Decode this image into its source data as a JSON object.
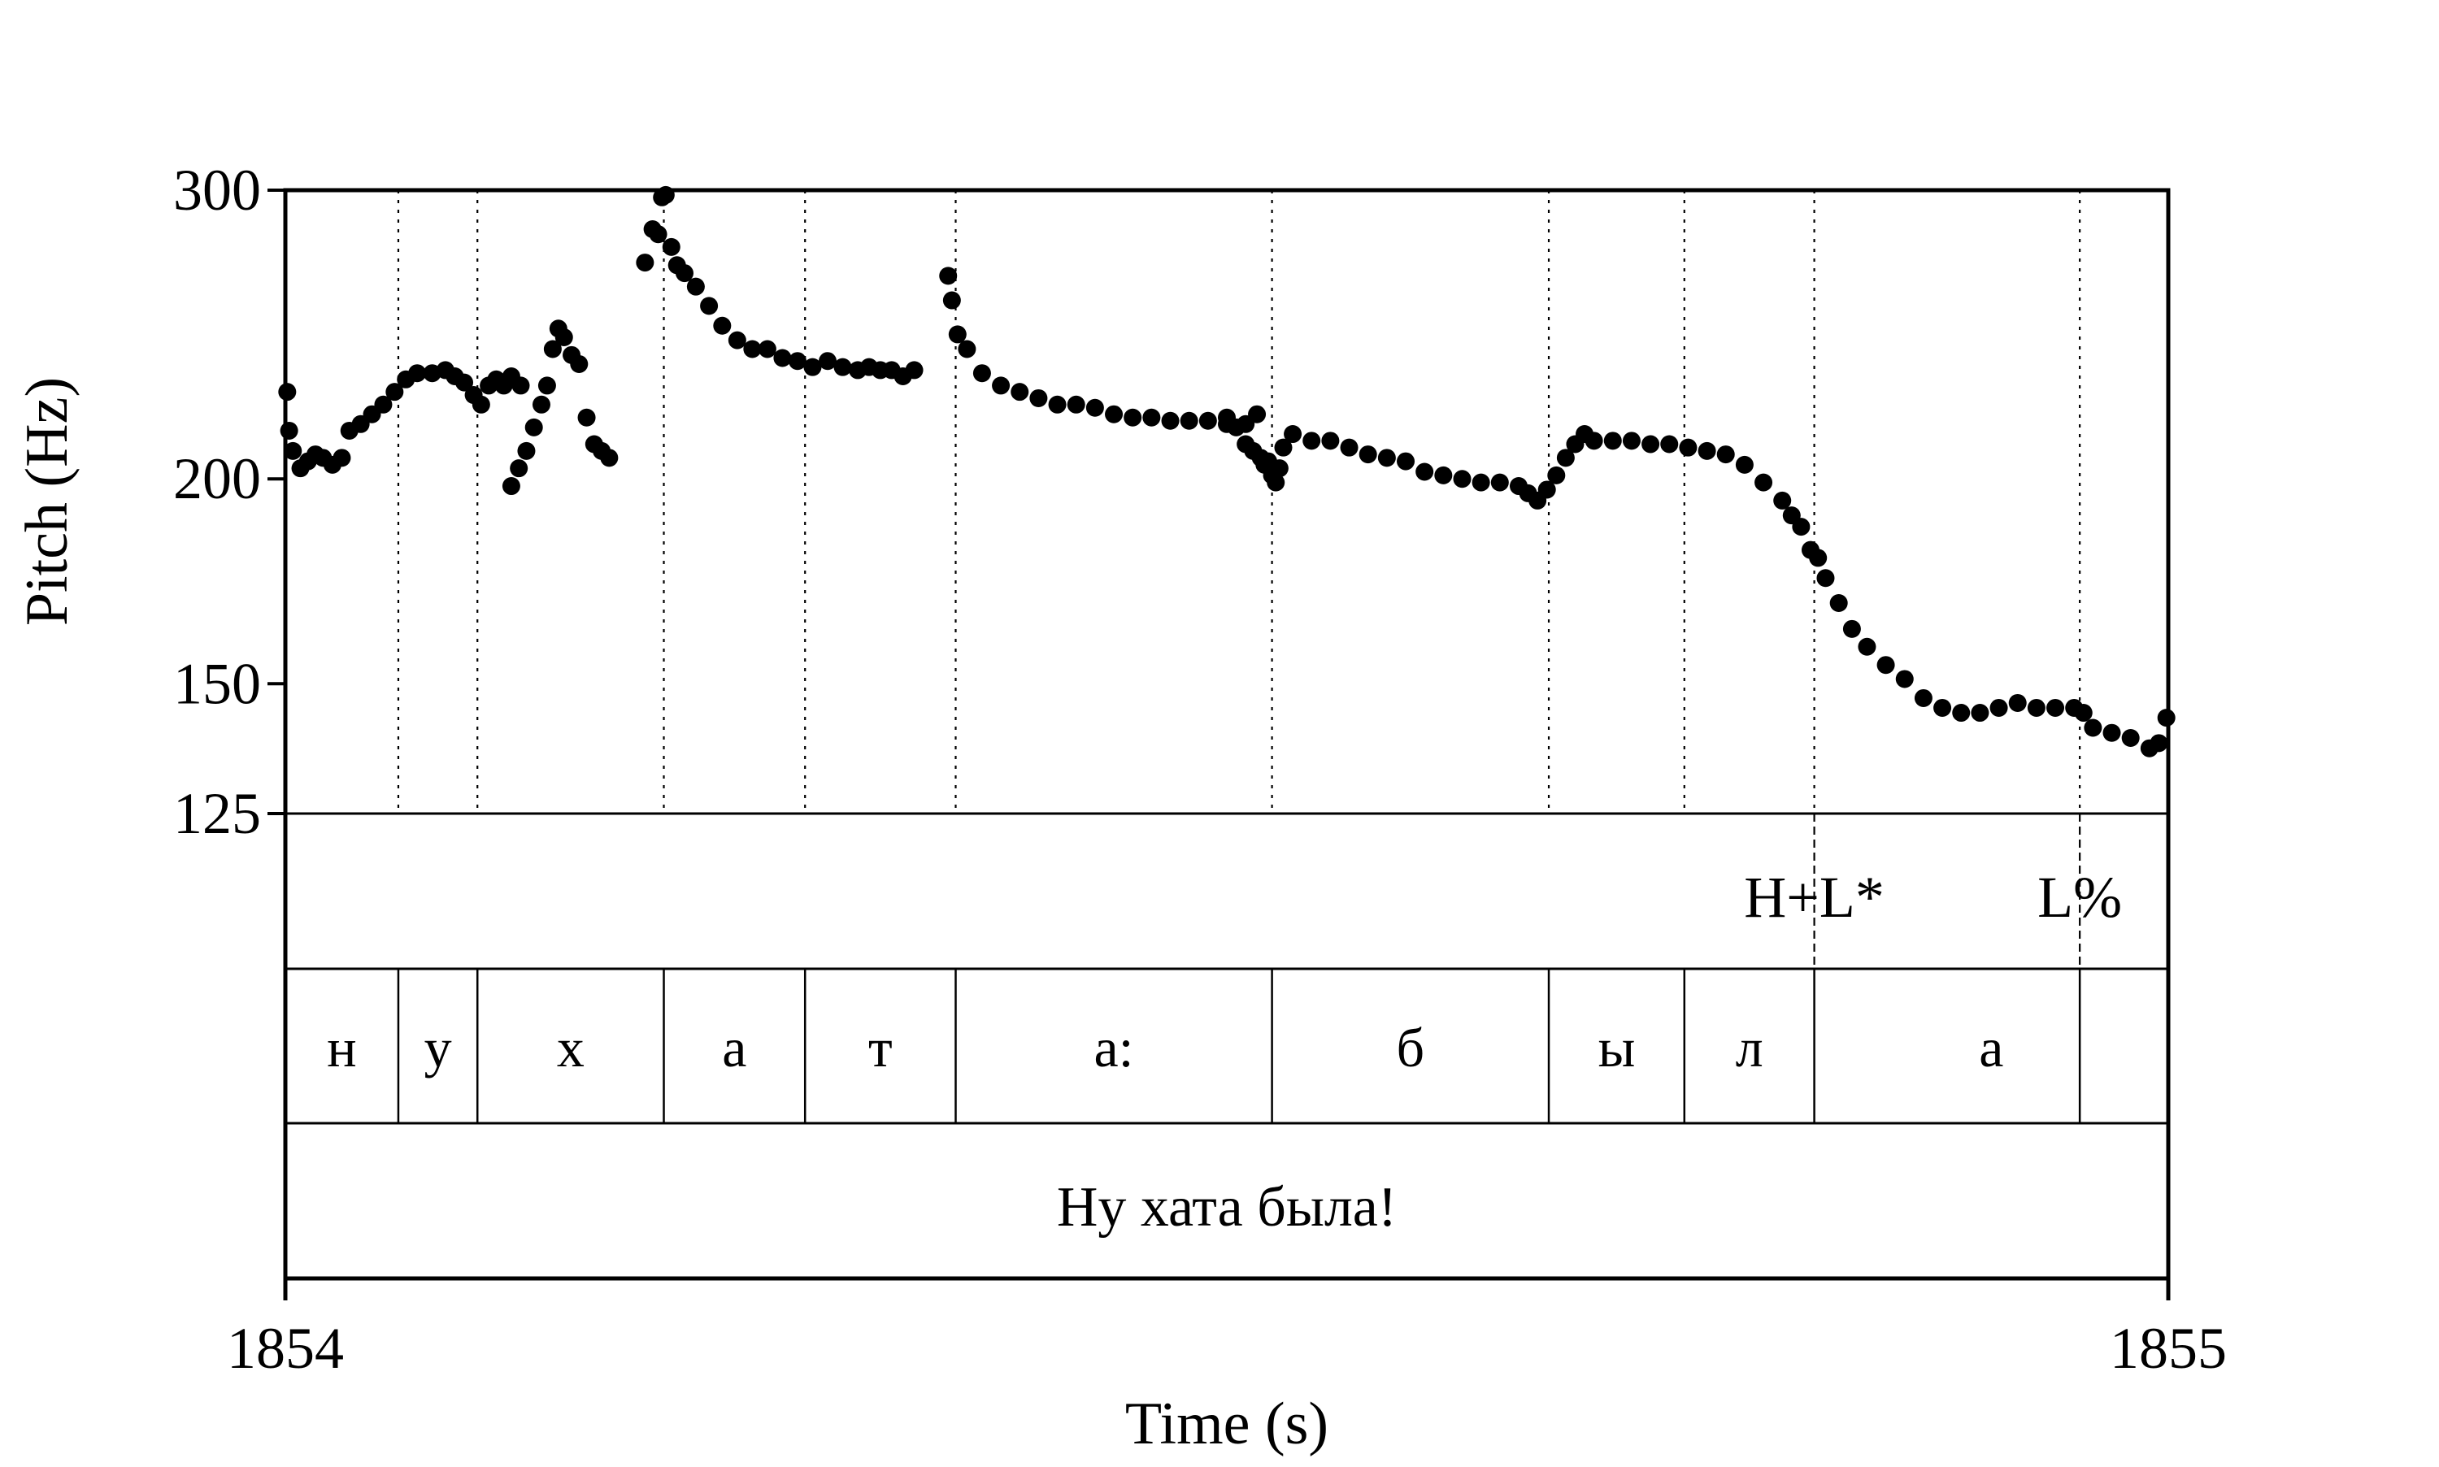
{
  "chart_data": {
    "type": "scatter",
    "title": "",
    "xlabel": "Time (s)",
    "ylabel": "Pitch (Hz)",
    "xlim": [
      1854,
      1855
    ],
    "ylim": [
      125,
      300
    ],
    "yscale": "log",
    "x_ticks": [
      "1854",
      "1855"
    ],
    "y_ticks": [
      {
        "value": 300,
        "label": "300"
      },
      {
        "value": 200,
        "label": "200"
      },
      {
        "value": 150,
        "label": "150"
      },
      {
        "value": 125,
        "label": "125"
      }
    ],
    "grid": false,
    "legend": "none",
    "point_color": "#000000",
    "boundaries": [
      1854.06,
      1854.102,
      1854.201,
      1854.276,
      1854.356,
      1854.524,
      1854.671,
      1854.743,
      1854.812,
      1854.953
    ],
    "tones": [
      {
        "label": "H+L*",
        "time": 1854.812
      },
      {
        "label": "L%",
        "time": 1854.953
      }
    ],
    "segments": [
      {
        "label": "н",
        "start": 1854.0,
        "end": 1854.06
      },
      {
        "label": "у",
        "start": 1854.06,
        "end": 1854.102
      },
      {
        "label": "х",
        "start": 1854.102,
        "end": 1854.201
      },
      {
        "label": "а",
        "start": 1854.201,
        "end": 1854.276
      },
      {
        "label": "т",
        "start": 1854.276,
        "end": 1854.356
      },
      {
        "label": "а:",
        "start": 1854.356,
        "end": 1854.524
      },
      {
        "label": "б",
        "start": 1854.524,
        "end": 1854.671
      },
      {
        "label": "ы",
        "start": 1854.671,
        "end": 1854.743
      },
      {
        "label": "л",
        "start": 1854.743,
        "end": 1854.812
      },
      {
        "label": "а",
        "start": 1854.812,
        "end": 1855.0
      }
    ],
    "sentence": "Ну хата была!",
    "series": [
      {
        "points": [
          [
            1854.001,
            226
          ],
          [
            1854.002,
            214
          ],
          [
            1854.004,
            208
          ],
          [
            1854.008,
            203
          ],
          [
            1854.012,
            205
          ],
          [
            1854.016,
            207
          ],
          [
            1854.02,
            206
          ],
          [
            1854.025,
            204
          ],
          [
            1854.03,
            206
          ],
          [
            1854.034,
            214
          ],
          [
            1854.04,
            216
          ],
          [
            1854.046,
            219
          ],
          [
            1854.052,
            222
          ],
          [
            1854.058,
            226
          ],
          [
            1854.064,
            230
          ],
          [
            1854.07,
            232
          ],
          [
            1854.078,
            232
          ],
          [
            1854.085,
            233
          ],
          [
            1854.09,
            231
          ],
          [
            1854.095,
            229
          ],
          [
            1854.1,
            225
          ],
          [
            1854.104,
            222
          ],
          [
            1854.108,
            228
          ],
          [
            1854.112,
            230
          ],
          [
            1854.116,
            228
          ],
          [
            1854.12,
            231
          ],
          [
            1854.125,
            228
          ],
          [
            1854.12,
            198
          ],
          [
            1854.124,
            203
          ],
          [
            1854.128,
            208
          ],
          [
            1854.132,
            215
          ],
          [
            1854.136,
            222
          ],
          [
            1854.139,
            228
          ],
          [
            1854.142,
            240
          ],
          [
            1854.145,
            247
          ],
          [
            1854.148,
            244
          ],
          [
            1854.152,
            238
          ],
          [
            1854.156,
            235
          ],
          [
            1854.16,
            218
          ],
          [
            1854.164,
            210
          ],
          [
            1854.168,
            208
          ],
          [
            1854.172,
            206
          ],
          [
            1854.191,
            271
          ],
          [
            1854.195,
            284
          ],
          [
            1854.198,
            282
          ],
          [
            1854.2,
            297
          ],
          [
            1854.202,
            298
          ],
          [
            1854.205,
            277
          ],
          [
            1854.208,
            270
          ],
          [
            1854.212,
            267
          ],
          [
            1854.218,
            262
          ],
          [
            1854.225,
            255
          ],
          [
            1854.232,
            248
          ],
          [
            1854.24,
            243
          ],
          [
            1854.248,
            240
          ],
          [
            1854.256,
            240
          ],
          [
            1854.264,
            237
          ],
          [
            1854.272,
            236
          ],
          [
            1854.28,
            234
          ],
          [
            1854.288,
            236
          ],
          [
            1854.296,
            234
          ],
          [
            1854.304,
            233
          ],
          [
            1854.31,
            234
          ],
          [
            1854.316,
            233
          ],
          [
            1854.322,
            233
          ],
          [
            1854.328,
            231
          ],
          [
            1854.334,
            233
          ],
          [
            1854.352,
            266
          ],
          [
            1854.354,
            257
          ],
          [
            1854.357,
            245
          ],
          [
            1854.362,
            240
          ],
          [
            1854.37,
            232
          ],
          [
            1854.38,
            228
          ],
          [
            1854.39,
            226
          ],
          [
            1854.4,
            224
          ],
          [
            1854.41,
            222
          ],
          [
            1854.42,
            222
          ],
          [
            1854.43,
            221
          ],
          [
            1854.44,
            219
          ],
          [
            1854.45,
            218
          ],
          [
            1854.46,
            218
          ],
          [
            1854.47,
            217
          ],
          [
            1854.48,
            217
          ],
          [
            1854.49,
            217
          ],
          [
            1854.5,
            216
          ],
          [
            1854.51,
            216
          ],
          [
            1854.516,
            219
          ],
          [
            1854.5,
            218
          ],
          [
            1854.505,
            215
          ],
          [
            1854.51,
            210
          ],
          [
            1854.514,
            208
          ],
          [
            1854.518,
            206
          ],
          [
            1854.52,
            204
          ],
          [
            1854.522,
            205
          ],
          [
            1854.524,
            201
          ],
          [
            1854.526,
            199
          ],
          [
            1854.528,
            203
          ],
          [
            1854.53,
            209
          ],
          [
            1854.535,
            213
          ],
          [
            1854.545,
            211
          ],
          [
            1854.555,
            211
          ],
          [
            1854.565,
            209
          ],
          [
            1854.575,
            207
          ],
          [
            1854.585,
            206
          ],
          [
            1854.595,
            205
          ],
          [
            1854.605,
            202
          ],
          [
            1854.615,
            201
          ],
          [
            1854.625,
            200
          ],
          [
            1854.635,
            199
          ],
          [
            1854.645,
            199
          ],
          [
            1854.655,
            198
          ],
          [
            1854.66,
            196
          ],
          [
            1854.665,
            194
          ],
          [
            1854.67,
            197
          ],
          [
            1854.675,
            201
          ],
          [
            1854.68,
            206
          ],
          [
            1854.685,
            210
          ],
          [
            1854.69,
            213
          ],
          [
            1854.695,
            211
          ],
          [
            1854.705,
            211
          ],
          [
            1854.715,
            211
          ],
          [
            1854.725,
            210
          ],
          [
            1854.735,
            210
          ],
          [
            1854.745,
            209
          ],
          [
            1854.755,
            208
          ],
          [
            1854.765,
            207
          ],
          [
            1854.775,
            204
          ],
          [
            1854.785,
            199
          ],
          [
            1854.795,
            194
          ],
          [
            1854.8,
            190
          ],
          [
            1854.805,
            187
          ],
          [
            1854.81,
            181
          ],
          [
            1854.814,
            179
          ],
          [
            1854.818,
            174
          ],
          [
            1854.825,
            168
          ],
          [
            1854.832,
            162
          ],
          [
            1854.84,
            158
          ],
          [
            1854.85,
            154
          ],
          [
            1854.86,
            151
          ],
          [
            1854.87,
            147
          ],
          [
            1854.88,
            145
          ],
          [
            1854.89,
            144
          ],
          [
            1854.9,
            144
          ],
          [
            1854.91,
            145
          ],
          [
            1854.92,
            146
          ],
          [
            1854.93,
            145
          ],
          [
            1854.94,
            145
          ],
          [
            1854.95,
            145
          ],
          [
            1854.955,
            144
          ],
          [
            1854.96,
            141
          ],
          [
            1854.97,
            140
          ],
          [
            1854.98,
            139
          ],
          [
            1854.99,
            137
          ],
          [
            1854.995,
            138
          ],
          [
            1854.999,
            143
          ]
        ]
      }
    ]
  }
}
